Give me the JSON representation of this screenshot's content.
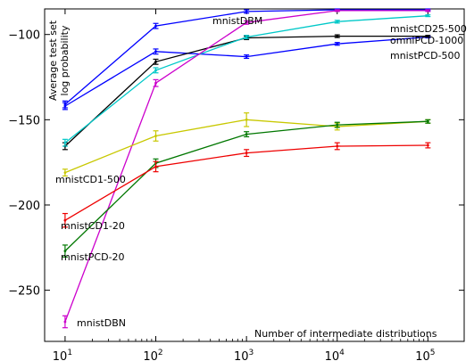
{
  "chart_data": {
    "type": "line",
    "title": "",
    "xlabel": "Number of intermediate distributions",
    "ylabel_lines": [
      "Average test set",
      "log probability"
    ],
    "xscale": "log",
    "xlim": [
      10,
      100000
    ],
    "ylim": [
      -280,
      -85
    ],
    "x": [
      10,
      100,
      1000,
      10000,
      100000
    ],
    "x_tick_labels": [
      {
        "base": "10",
        "exp": "1"
      },
      {
        "base": "10",
        "exp": "2"
      },
      {
        "base": "10",
        "exp": "3"
      },
      {
        "base": "10",
        "exp": "4"
      },
      {
        "base": "10",
        "exp": "5"
      }
    ],
    "y_ticks": [
      -100,
      -150,
      -200,
      -250
    ],
    "y_tick_labels": [
      "−100",
      "−150",
      "−200",
      "−250"
    ],
    "grid": false,
    "legend": "none",
    "series": [
      {
        "name": "mnistDBM",
        "color": "#0000ff",
        "values": [
          -141,
          -95,
          -86.5,
          -85.5,
          -85.5
        ],
        "errors": [
          2,
          1.5,
          1,
          0.5,
          0.5
        ]
      },
      {
        "name": "mnistPCD-500",
        "color": "#0000ff",
        "values": [
          -142,
          -110,
          -113,
          -105.5,
          -101.5
        ],
        "errors": [
          2,
          1.5,
          1,
          0.8,
          0.5
        ]
      },
      {
        "name": "omniPCD-1000",
        "color": "#000000",
        "values": [
          -165.5,
          -116,
          -102,
          -101,
          -101
        ],
        "errors": [
          2,
          1.5,
          1,
          0.8,
          0.5
        ]
      },
      {
        "name": "mnistCD25-500",
        "color": "#00c8c8",
        "values": [
          -163.5,
          -121,
          -101.5,
          -92.5,
          -89
        ],
        "errors": [
          2,
          1.5,
          1,
          0.8,
          0.5
        ]
      },
      {
        "name": "mnistDBN",
        "color": "#cc00cc",
        "values": [
          -268.5,
          -128.5,
          -93,
          -86,
          -86
        ],
        "errors": [
          3.5,
          2,
          1,
          0.5,
          0.5
        ]
      },
      {
        "name": "mnistCD1-500",
        "color": "#c8c800",
        "values": [
          -181,
          -159.5,
          -150,
          -154,
          -151
        ],
        "errors": [
          2,
          3,
          4,
          2,
          1
        ]
      },
      {
        "name": "mnistPCD-20",
        "color": "#007700",
        "values": [
          -227,
          -175.5,
          -158.5,
          -153,
          -151
        ],
        "errors": [
          3.5,
          2.5,
          1.5,
          1.5,
          1
        ]
      },
      {
        "name": "mnistCD1-20",
        "color": "#ee0000",
        "values": [
          -209,
          -177.5,
          -169.5,
          -165.5,
          -165
        ],
        "errors": [
          4,
          3,
          2,
          2,
          1.5
        ]
      }
    ]
  }
}
